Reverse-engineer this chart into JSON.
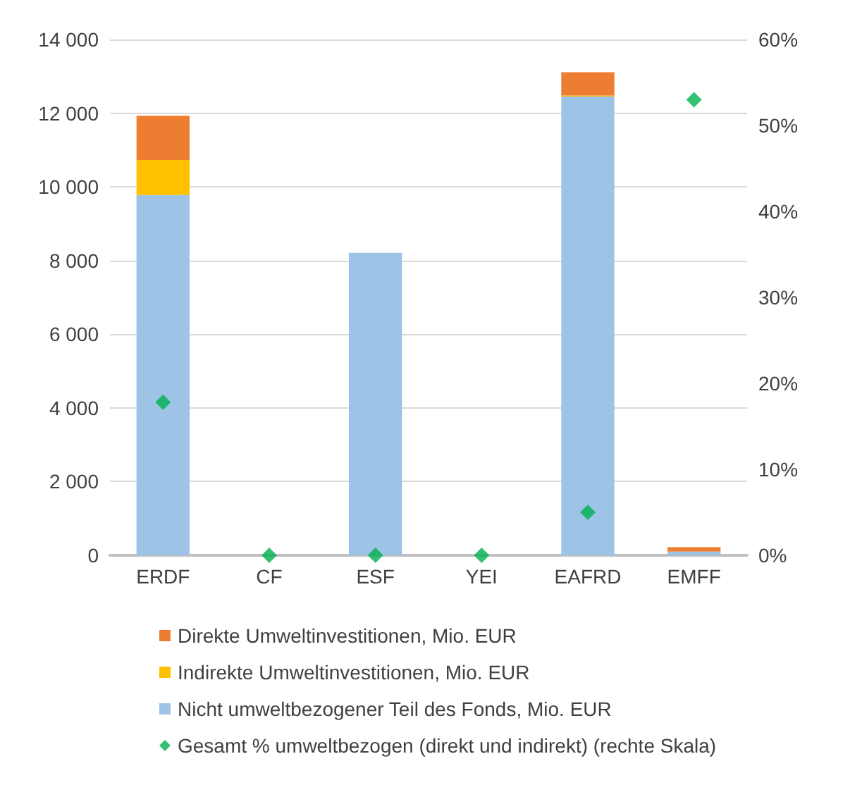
{
  "chart_data": {
    "type": "bar",
    "stacked": true,
    "categories": [
      "ERDF",
      "CF",
      "ESF",
      "YEI",
      "EAFRD",
      "EMFF"
    ],
    "series": [
      {
        "name": "Nicht umweltbezogener Teil des Fonds, Mio. EUR",
        "color": "#9dc3e6",
        "values": [
          9780,
          0,
          8210,
          0,
          12450,
          100
        ]
      },
      {
        "name": "Indirekte Umweltinvestitionen, Mio. EUR",
        "color": "#ffc000",
        "values": [
          950,
          0,
          0,
          0,
          30,
          0
        ]
      },
      {
        "name": "Direkte Umweltinvestitionen, Mio. EUR",
        "color": "#ed7d31",
        "values": [
          1200,
          0,
          0,
          0,
          630,
          120
        ]
      },
      {
        "name": "Gesamt % umweltbezogen (direkt und indirekt) (rechte Skala)",
        "type": "scatter",
        "axis": "y2",
        "marker": "diamond",
        "color": "#00b050",
        "values": [
          17.8,
          0,
          0,
          0,
          5.0,
          53.0
        ]
      }
    ],
    "ylim": [
      0,
      14000
    ],
    "yticks": [
      {
        "value": 0,
        "label": "0"
      },
      {
        "value": 2000,
        "label": "2 000"
      },
      {
        "value": 4000,
        "label": "4 000"
      },
      {
        "value": 6000,
        "label": "6 000"
      },
      {
        "value": 8000,
        "label": "8 000"
      },
      {
        "value": 10000,
        "label": "10 000"
      },
      {
        "value": 12000,
        "label": "12 000"
      },
      {
        "value": 14000,
        "label": "14 000"
      }
    ],
    "y2lim": [
      0,
      60
    ],
    "y2ticks": [
      {
        "value": 0,
        "label": "0%"
      },
      {
        "value": 10,
        "label": "10%"
      },
      {
        "value": 20,
        "label": "20%"
      },
      {
        "value": 30,
        "label": "30%"
      },
      {
        "value": 40,
        "label": "40%"
      },
      {
        "value": 50,
        "label": "50%"
      },
      {
        "value": 60,
        "label": "60%"
      }
    ],
    "grid": "y",
    "legend": "bottom"
  }
}
